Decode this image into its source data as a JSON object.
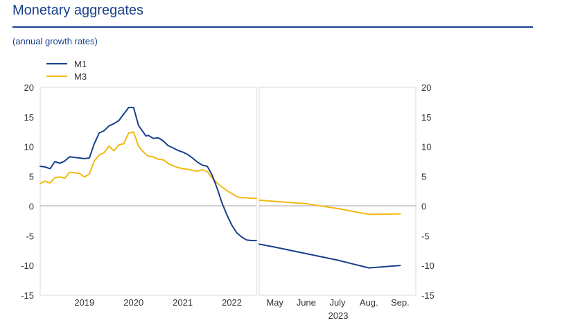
{
  "page": {
    "title": "Monetary aggregates",
    "subtitle": "(annual growth rates)"
  },
  "colors": {
    "m1": "#17408b",
    "m3": "#f2b90f",
    "zero_line": "#a6a6a6",
    "frame": "#d9d9d9",
    "text": "#333333"
  },
  "chart_data": {
    "type": "line",
    "title": "Monetary aggregates",
    "subtitle": "(annual growth rates)",
    "legend": [
      "M1",
      "M3"
    ],
    "legend_position": "top-left",
    "ylim": [
      -15,
      20
    ],
    "yticks": [
      20,
      15,
      10,
      5,
      0,
      -5,
      -10,
      -15
    ],
    "left_panel": {
      "xlim": [
        2018.6,
        2023.0
      ],
      "xtick_labels": [
        {
          "value": 2019.0,
          "label": "2019"
        },
        {
          "value": 2020.0,
          "label": "2020"
        },
        {
          "value": 2021.0,
          "label": "2021"
        },
        {
          "value": 2022.0,
          "label": "2022"
        }
      ],
      "series": [
        {
          "name": "M1",
          "x": [
            2018.6,
            2018.7,
            2018.8,
            2018.9,
            2019.0,
            2019.1,
            2019.2,
            2019.3,
            2019.4,
            2019.5,
            2019.6,
            2019.7,
            2019.8,
            2019.9,
            2020.0,
            2020.1,
            2020.2,
            2020.3,
            2020.4,
            2020.5,
            2020.6,
            2020.7,
            2020.75,
            2020.8,
            2020.9,
            2021.0,
            2021.1,
            2021.2,
            2021.3,
            2021.4,
            2021.5,
            2021.6,
            2021.7,
            2021.8,
            2021.9,
            2022.0,
            2022.1,
            2022.2,
            2022.3,
            2022.4,
            2022.5,
            2022.6,
            2022.7,
            2022.8,
            2022.9,
            2023.0
          ],
          "values": [
            6.7,
            6.6,
            6.3,
            7.5,
            7.2,
            7.6,
            8.3,
            8.2,
            8.1,
            8.0,
            8.1,
            10.5,
            12.3,
            12.7,
            13.5,
            13.9,
            14.4,
            15.5,
            16.6,
            16.6,
            13.6,
            12.4,
            11.8,
            11.9,
            11.4,
            11.5,
            11.0,
            10.2,
            9.8,
            9.4,
            9.1,
            8.7,
            8.1,
            7.4,
            6.9,
            6.7,
            5.2,
            3.0,
            0.5,
            -1.5,
            -3.2,
            -4.5,
            -5.2,
            -5.7,
            -5.8,
            -5.8
          ]
        },
        {
          "name": "M3",
          "x": [
            2018.6,
            2018.7,
            2018.8,
            2018.9,
            2019.0,
            2019.1,
            2019.2,
            2019.3,
            2019.4,
            2019.5,
            2019.6,
            2019.7,
            2019.8,
            2019.9,
            2020.0,
            2020.1,
            2020.2,
            2020.3,
            2020.4,
            2020.5,
            2020.6,
            2020.7,
            2020.8,
            2020.9,
            2021.0,
            2021.1,
            2021.2,
            2021.3,
            2021.4,
            2021.5,
            2021.6,
            2021.7,
            2021.8,
            2021.9,
            2022.0,
            2022.1,
            2022.2,
            2022.3,
            2022.4,
            2022.5,
            2022.6,
            2022.7,
            2022.8,
            2022.9,
            2023.0
          ],
          "values": [
            3.8,
            4.2,
            3.9,
            4.8,
            4.9,
            4.7,
            5.7,
            5.6,
            5.5,
            4.9,
            5.4,
            7.6,
            8.6,
            9.0,
            10.1,
            9.3,
            10.3,
            10.5,
            12.3,
            12.5,
            10.1,
            9.1,
            8.4,
            8.3,
            7.9,
            7.8,
            7.2,
            6.8,
            6.5,
            6.3,
            6.2,
            6.0,
            5.9,
            6.1,
            5.8,
            4.7,
            3.9,
            3.2,
            2.6,
            2.1,
            1.6,
            1.4,
            1.4,
            1.3,
            1.3
          ]
        }
      ]
    },
    "right_panel": {
      "xlim": [
        0,
        10
      ],
      "xtick_labels": [
        {
          "value": 1,
          "label": "May"
        },
        {
          "value": 3,
          "label": "June"
        },
        {
          "value": 5,
          "label": "July"
        },
        {
          "value": 7,
          "label": "Aug."
        },
        {
          "value": 9,
          "label": "Sep."
        }
      ],
      "year_label": "2023",
      "series": [
        {
          "name": "M1",
          "x": [
            0,
            1,
            3,
            5,
            7,
            9
          ],
          "values": [
            -6.4,
            -6.9,
            -8.0,
            -9.1,
            -10.4,
            -10.0
          ]
        },
        {
          "name": "M3",
          "x": [
            0,
            1,
            3,
            5,
            7,
            9
          ],
          "values": [
            1.0,
            0.8,
            0.4,
            -0.4,
            -1.4,
            -1.3
          ]
        }
      ]
    }
  }
}
